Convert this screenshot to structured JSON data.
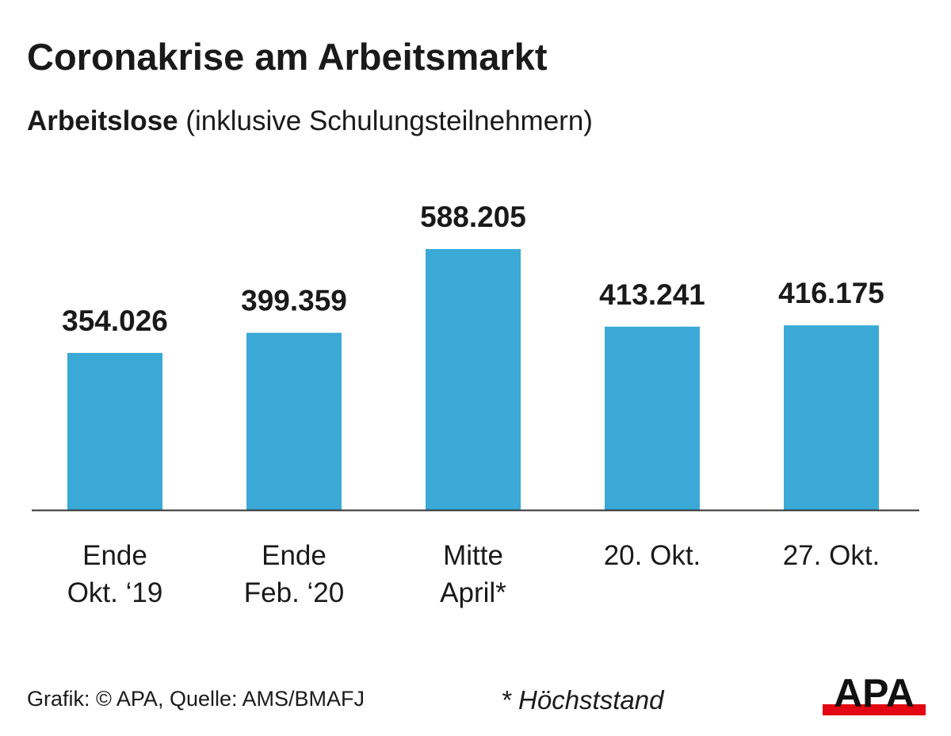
{
  "header": {
    "title": "Coronakrise am Arbeitsmarkt",
    "subtitle_bold": "Arbeitslose",
    "subtitle_rest": " (inklusive Schulungsteilnehmern)"
  },
  "chart_data": {
    "type": "bar",
    "title": "Coronakrise am Arbeitsmarkt",
    "subtitle": "Arbeitslose (inklusive Schulungsteilnehmern)",
    "categories": [
      [
        "Ende",
        "Okt. ‘19"
      ],
      [
        "Ende",
        "Feb. ‘20"
      ],
      [
        "Mitte",
        "April*"
      ],
      [
        "20. Okt."
      ],
      [
        "27. Okt."
      ]
    ],
    "values": [
      354026,
      399359,
      588205,
      413241,
      416175
    ],
    "value_labels": [
      "354.026",
      "399.359",
      "588.205",
      "413.241",
      "416.175"
    ],
    "ylim": [
      0,
      588205
    ],
    "bar_color": "#3aa9d6",
    "grid": false,
    "legend": "none"
  },
  "footer": {
    "source": "Grafik: © APA, Quelle: AMS/BMAFJ",
    "note": "* Höchststand"
  },
  "logo": {
    "text": "APA",
    "accent_color": "#e30613"
  }
}
